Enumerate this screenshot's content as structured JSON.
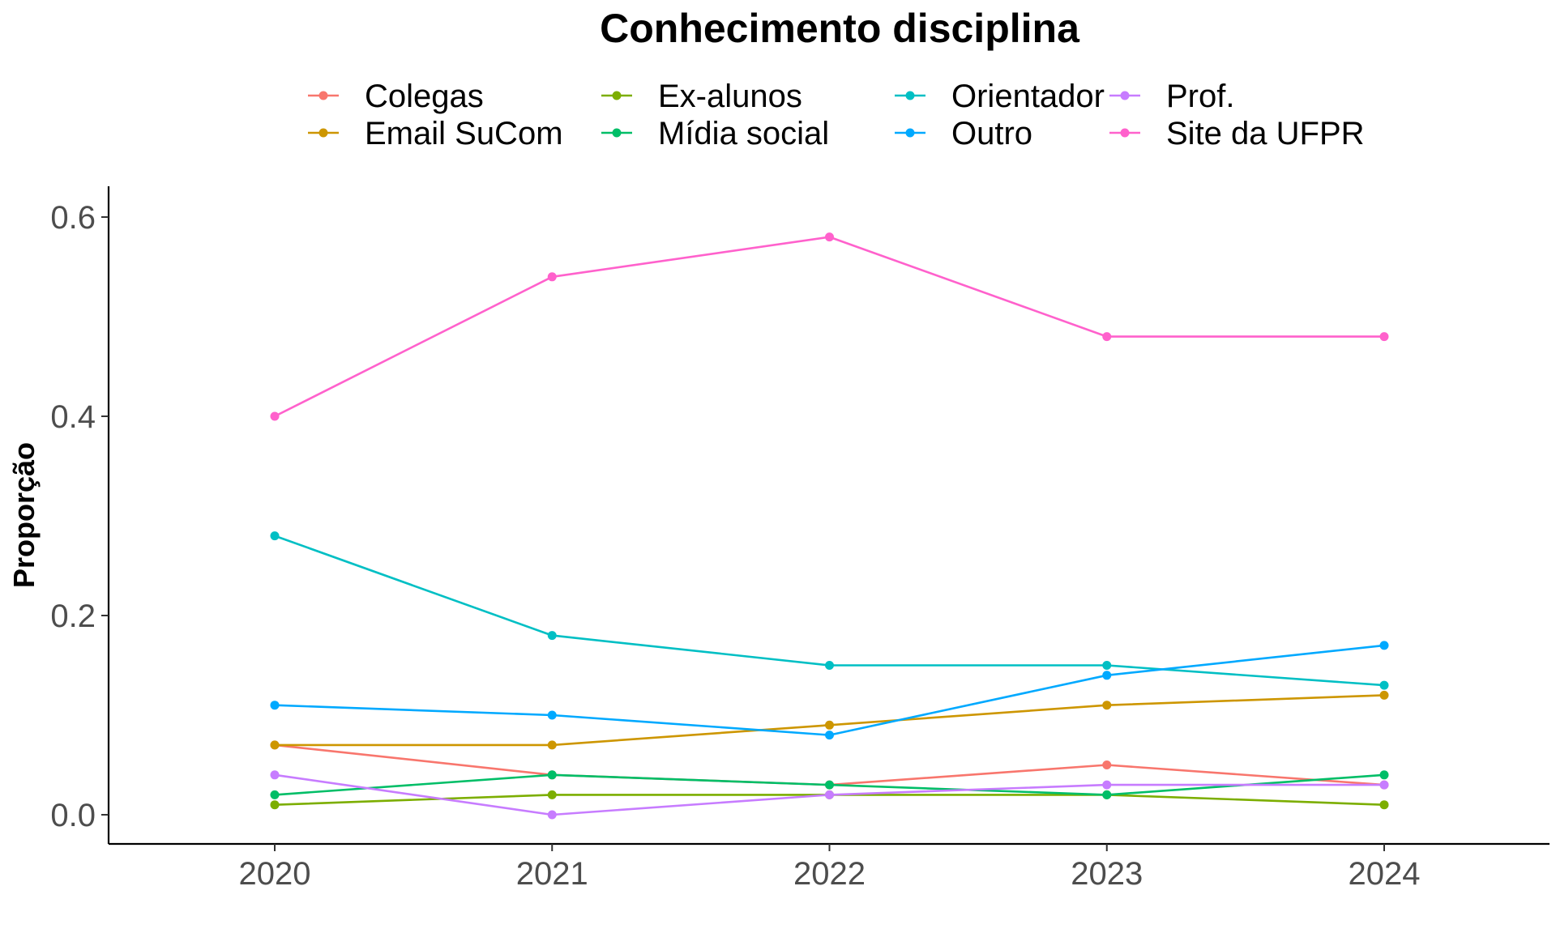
{
  "chart_data": {
    "type": "line",
    "title": "Conhecimento disciplina",
    "xlabel": "",
    "ylabel": "Proporção",
    "x": [
      "2020",
      "2021",
      "2022",
      "2023",
      "2024"
    ],
    "ylim": [
      -0.03,
      0.61
    ],
    "yticks": [
      0.0,
      0.2,
      0.4,
      0.6
    ],
    "ytick_labels": [
      "0.0",
      "0.2",
      "0.4",
      "0.6"
    ],
    "grid": false,
    "legend_position": "top",
    "series": [
      {
        "name": "Colegas",
        "color": "#F8766D",
        "values": [
          0.07,
          0.04,
          0.03,
          0.05,
          0.03
        ]
      },
      {
        "name": "Email SuCom",
        "color": "#CD9600",
        "values": [
          0.07,
          0.07,
          0.09,
          0.11,
          0.12
        ]
      },
      {
        "name": "Ex-alunos",
        "color": "#7CAE00",
        "values": [
          0.01,
          0.02,
          0.02,
          0.02,
          0.01
        ]
      },
      {
        "name": "Mídia social",
        "color": "#00BE67",
        "values": [
          0.02,
          0.04,
          0.03,
          0.02,
          0.04
        ]
      },
      {
        "name": "Orientador",
        "color": "#00BFC4",
        "values": [
          0.28,
          0.18,
          0.15,
          0.15,
          0.13
        ]
      },
      {
        "name": "Outro",
        "color": "#00A9FF",
        "values": [
          0.11,
          0.1,
          0.08,
          0.14,
          0.17
        ]
      },
      {
        "name": "Prof.",
        "color": "#C77CFF",
        "values": [
          0.04,
          0.0,
          0.02,
          0.03,
          0.03
        ]
      },
      {
        "name": "Site da UFPR",
        "color": "#FF61CC",
        "values": [
          0.4,
          0.54,
          0.58,
          0.48,
          0.48
        ]
      }
    ]
  }
}
